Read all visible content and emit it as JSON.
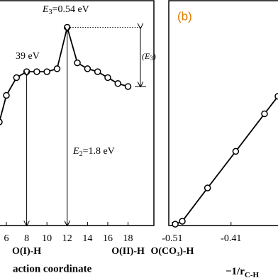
{
  "chart_data": [
    {
      "type": "line",
      "x_label": "action coordinate",
      "color": "#000000",
      "x": [
        5.3,
        6,
        7,
        8,
        9,
        10,
        11,
        12,
        13,
        14,
        15,
        16,
        17,
        18
      ],
      "series": [
        {
          "values": [
            0.22,
            0.31,
            0.37,
            0.39,
            0.39,
            0.39,
            0.4,
            0.54,
            0.42,
            0.4,
            0.39,
            0.37,
            0.35,
            0.34
          ]
        }
      ],
      "xlim": [
        5.3,
        20.55
      ],
      "ylim": [
        -0.13,
        0.63
      ],
      "xticks": [
        6,
        8,
        10,
        12,
        14,
        16,
        18
      ],
      "tick_notes": [
        {
          "x": 8,
          "label": "O(I)-H"
        },
        {
          "x": 18,
          "label": "O(II)-H"
        }
      ],
      "annotations": {
        "e1": "39 eV",
        "e2": [
          "E",
          "2",
          "=1.8 eV"
        ],
        "e3": [
          "E",
          "3",
          "=0.54 eV"
        ],
        "e3_bracket": [
          "(E",
          "3",
          ")"
        ]
      }
    },
    {
      "type": "line",
      "panel_label": "(b)",
      "x_label": "−1/r",
      "x_label_sub": "C-H",
      "color": "#000000",
      "x": [
        -0.505,
        -0.493,
        -0.45,
        -0.402,
        -0.353,
        -0.33
      ],
      "series": [
        {
          "values": [
            0.6,
            1.9,
            16.7,
            33.0,
            49.7,
            57.5
          ]
        }
      ],
      "xlim": [
        -0.516,
        -0.33
      ],
      "ylim": [
        0,
        100
      ],
      "xticks": [
        -0.51,
        -0.41
      ],
      "tick_notes": [
        {
          "x": -0.51,
          "label": "O(CO₃)-H"
        }
      ]
    }
  ]
}
